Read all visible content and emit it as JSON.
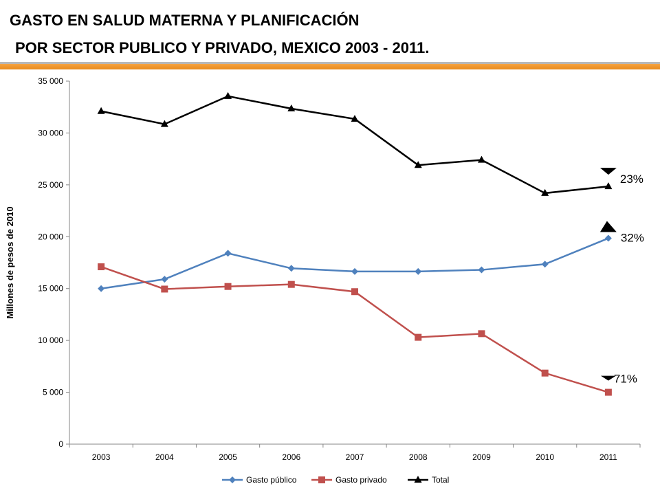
{
  "title": {
    "line1": "GASTO EN SALUD MATERNA Y PLANIFICACIÓN",
    "line2": "POR SECTOR PUBLICO Y PRIVADO, MEXICO 2003 - 2011."
  },
  "chart_data": {
    "type": "line",
    "ylabel": "Millones de pesos de 2010",
    "ylim": [
      0,
      35000
    ],
    "yticks": [
      0,
      5000,
      10000,
      15000,
      20000,
      25000,
      30000,
      35000
    ],
    "ytick_labels": [
      "0",
      "5 000",
      "10 000",
      "15 000",
      "20 000",
      "25 000",
      "30 000",
      "35 000"
    ],
    "grid": false,
    "legend_position": "bottom",
    "categories": [
      "2003",
      "2004",
      "2005",
      "2006",
      "2007",
      "2008",
      "2009",
      "2010",
      "2011"
    ],
    "series": [
      {
        "name": "Gasto público",
        "color": "#4f81bd",
        "marker": "diamond",
        "values": [
          15000,
          15900,
          18400,
          16950,
          16650,
          16650,
          16800,
          17350,
          19850
        ]
      },
      {
        "name": "Gasto privado",
        "color": "#c0504d",
        "marker": "square",
        "values": [
          17100,
          14950,
          15200,
          15400,
          14700,
          10300,
          10650,
          6850,
          5000
        ]
      },
      {
        "name": "Total",
        "color": "#000000",
        "marker": "triangle",
        "values": [
          32100,
          30850,
          33550,
          32350,
          31350,
          26900,
          27400,
          24200,
          24850
        ]
      }
    ],
    "annotations": [
      {
        "text": "23%",
        "series": "Total",
        "arrow": "down"
      },
      {
        "text": "32%",
        "series": "Gasto público",
        "arrow": "up"
      },
      {
        "text": "71%",
        "series": "Gasto privado",
        "arrow": "down"
      }
    ]
  }
}
